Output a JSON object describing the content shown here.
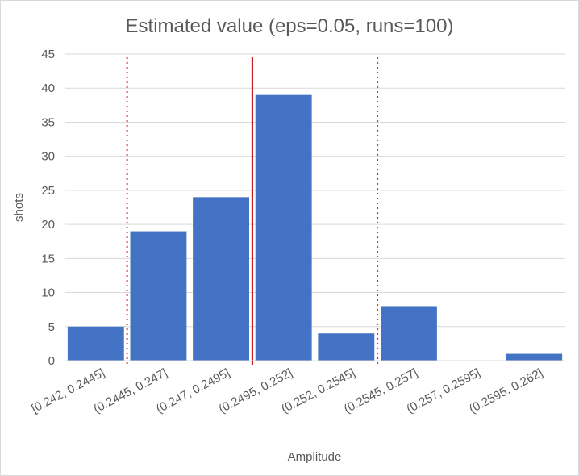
{
  "chart_data": {
    "type": "bar",
    "title": "Estimated value (eps=0.05, runs=100)",
    "xlabel": "Amplitude",
    "ylabel": "shots",
    "categories": [
      "[0.242, 0.2445]",
      "(0.2445, 0.247]",
      "(0.247, 0.2495]",
      "(0.2495, 0.252]",
      "(0.252, 0.2545]",
      "(0.2545, 0.257]",
      "(0.257, 0.2595]",
      "(0.2595, 0.262]"
    ],
    "values": [
      5,
      19,
      24,
      39,
      4,
      8,
      0,
      1
    ],
    "ylim": [
      0,
      45
    ],
    "yticks": [
      0,
      5,
      10,
      15,
      20,
      25,
      30,
      35,
      40,
      45
    ],
    "grid": true,
    "bar_color": "#4472c4",
    "reference_lines": [
      {
        "style": "solid",
        "color": "#c00000",
        "at_category_boundary": 3
      },
      {
        "style": "dotted",
        "color": "#e03030",
        "at_category_boundary": 1
      },
      {
        "style": "dotted",
        "color": "#e03030",
        "at_category_boundary": 5
      }
    ]
  }
}
